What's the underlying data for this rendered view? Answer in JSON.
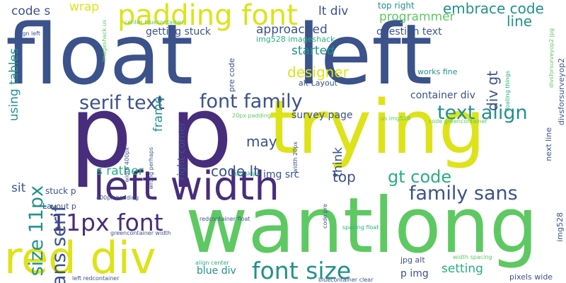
{
  "palette": {
    "purple": "#472d7b",
    "indigo": "#3b528b",
    "blue": "#2c728e",
    "teal": "#21918c",
    "green": "#28ae80",
    "lightgreen": "#5ec962",
    "lime": "#addc30",
    "yellow": "#dde318"
  },
  "words": [
    "float",
    "left",
    "p",
    "p",
    "trying",
    "wantlong",
    "red div",
    "left width",
    "padding font",
    "font family",
    "serif text",
    "text align",
    "11px font",
    "font size",
    "family sans",
    "size 11px",
    "sans serif",
    "gt code",
    "embrace code",
    "code lt",
    "designer",
    "started",
    "approached",
    "programmer",
    "lt div",
    "may",
    "div gt",
    "top",
    "setting",
    "frame",
    "line",
    "wrap",
    "code s",
    "getting stuck",
    "question text",
    "container div",
    "survey page",
    "s rather",
    "top right",
    "using tables",
    "sit",
    "think",
    "blue div",
    "img src",
    "p img",
    "stuck p",
    "right corner",
    "Layout p",
    "img528 imageshack",
    "alt Layout",
    "works fine",
    "pre code",
    "20px padding",
    "us img528",
    "code greencontainer",
    "next line",
    "imageshack us",
    "center bluecontainer",
    "align left",
    "width 400px",
    "wrong perhaps",
    "div skips",
    "400px padding",
    "redcontainer float",
    "greencontainer width",
    "width 20px",
    "code pre",
    "spacing float",
    "jpg alt",
    "width spacing",
    "align center",
    "bluecontainer clear",
    "left redcontainer",
    "pixels wide",
    "img528",
    "divsforsurveyop2",
    "divsforsurveyop2 jpg",
    "floating things"
  ]
}
